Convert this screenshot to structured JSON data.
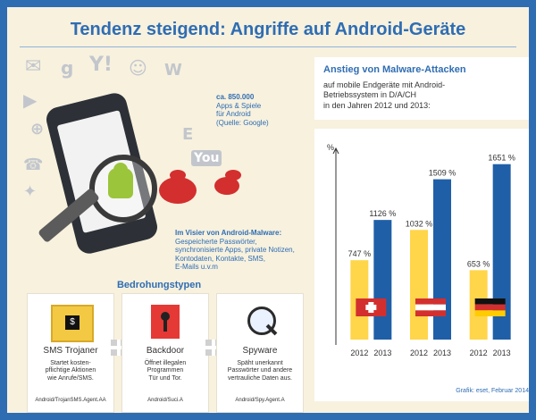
{
  "header": {
    "title": "Tendenz steigend: Angriffe auf Android-Geräte"
  },
  "info_note": {
    "count": "ca. 850.000",
    "line1": "Apps & Spiele",
    "line2": "für Android",
    "source": "(Quelle: Google)"
  },
  "malware_note": {
    "title": "Im Visier von Android-Malware:",
    "line1": "Gespeicherte Passwörter,",
    "line2": "synchronisierte Apps, private Notizen,",
    "line3": "Kontodaten, Kontakte, SMS,",
    "line4": "E-Mails u.v.m"
  },
  "threats": {
    "heading": "Bedrohungstypen",
    "items": [
      {
        "name": "SMS Trojaner",
        "desc1": "Startet kosten-",
        "desc2": "pflichtige Aktionen",
        "desc3": "wie Anrufe/SMS.",
        "code": "Android/TrojanSMS.Agent.AA",
        "icon": "envelope-dollar-icon"
      },
      {
        "name": "Backdoor",
        "desc1": "Öffnet illegalen",
        "desc2": "Programmen",
        "desc3": "Tür und Tor.",
        "code": "Android/Suci.A",
        "icon": "keyhole-icon"
      },
      {
        "name": "Spyware",
        "desc1": "Späht unerkannt",
        "desc2": "Passwörter und andere",
        "desc3": "vertrauliche Daten aus.",
        "code": "Android/Spy.Agent.A",
        "icon": "magnifier-binary-icon"
      }
    ]
  },
  "right_panel": {
    "title": "Anstieg von Malware-Attacken",
    "sub1": "auf mobile Endgeräte mit Android-",
    "sub2": "Betriebssystem in D/A/CH",
    "sub3": "in den Jahren 2012 und 2013:"
  },
  "chart_data": {
    "type": "bar",
    "ylabel": "%",
    "groups": [
      {
        "name": "Schweiz",
        "flag": "flag-ch",
        "values": [
          747,
          1126
        ],
        "labels": [
          "747 %",
          "1126 %"
        ]
      },
      {
        "name": "Österreich",
        "flag": "flag-at",
        "values": [
          1032,
          1509
        ],
        "labels": [
          "1032 %",
          "1509 %"
        ]
      },
      {
        "name": "Deutschland",
        "flag": "flag-de",
        "values": [
          653,
          1651
        ],
        "labels": [
          "653 %",
          "1651 %"
        ]
      }
    ],
    "years": [
      "2012",
      "2013"
    ],
    "series": [
      {
        "name": "2012",
        "color": "#ffd54a"
      },
      {
        "name": "2013",
        "color": "#1f5fa7"
      }
    ],
    "ylim": [
      0,
      1800
    ]
  },
  "footer": {
    "source": "Grafik: eset, Februar 2014"
  }
}
